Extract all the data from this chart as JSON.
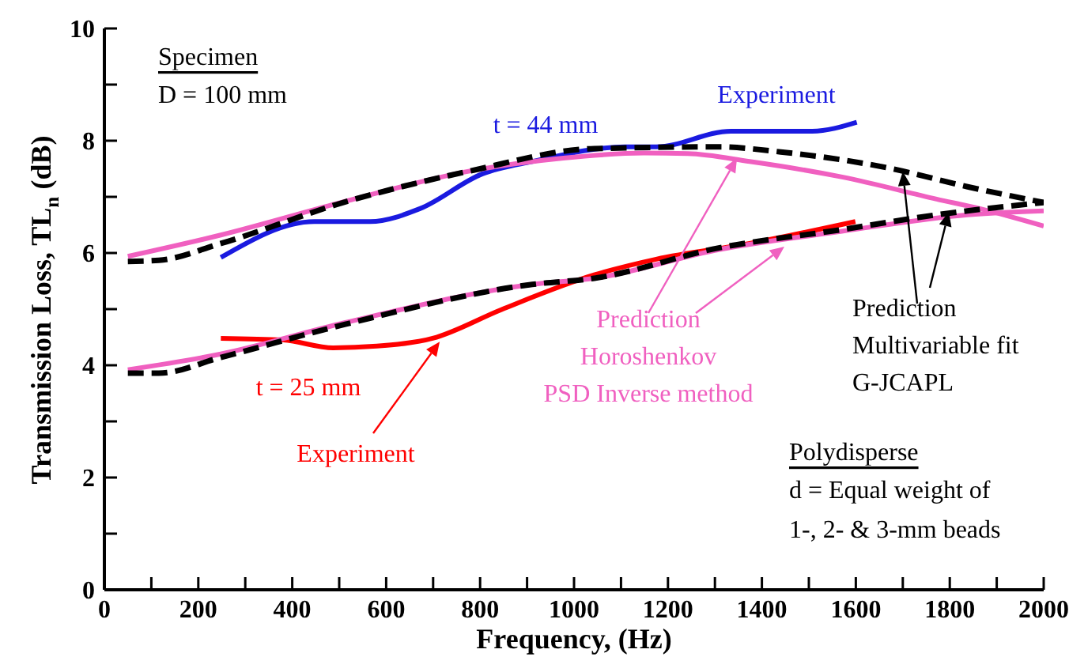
{
  "chart_data": {
    "type": "line",
    "xlabel": "Frequency, (Hz)",
    "ylabel": "Transmission Loss, TL$_{n}$ (dB)",
    "xlim": [
      0,
      2000
    ],
    "xticks": [
      0,
      {
        "value": 100,
        "label": null
      },
      200,
      {
        "value": 300,
        "label": null
      },
      400,
      {
        "value": 500,
        "label": null
      },
      600,
      {
        "value": 700,
        "label": null
      },
      800,
      {
        "value": 900,
        "label": null
      },
      1000,
      {
        "value": 1100,
        "label": null
      },
      1200,
      {
        "value": 1300,
        "label": null
      },
      1400,
      {
        "value": 1500,
        "label": null
      },
      1600,
      {
        "value": 1700,
        "label": null
      },
      1800,
      {
        "value": 1900,
        "label": null
      },
      2000
    ],
    "ylim": [
      0,
      10
    ],
    "yticks": [
      0,
      {
        "value": 1,
        "label": null
      },
      2,
      {
        "value": 3,
        "label": null
      },
      4,
      {
        "value": 5,
        "label": null
      },
      6,
      {
        "value": 7,
        "label": null
      },
      8,
      {
        "value": 9,
        "label": null
      },
      10
    ],
    "marker": "none",
    "series": [
      {
        "color": "#1a1ae0",
        "line_style": "solid",
        "x": [
          248,
          447,
          566,
          672,
          805,
          911,
          1109,
          1175,
          1334,
          1507,
          1602
        ],
        "values": [
          5.92,
          6.56,
          6.56,
          6.79,
          7.41,
          7.63,
          7.89,
          7.89,
          8.17,
          8.17,
          8.33
        ]
      },
      {
        "color": "#f060c0",
        "line_style": "solid",
        "x": [
          50,
          248,
          513,
          778,
          977,
          1149,
          1242,
          1374,
          1573,
          1772,
          1864,
          2000
        ],
        "values": [
          5.94,
          6.32,
          6.92,
          7.46,
          7.69,
          7.78,
          7.77,
          7.63,
          7.35,
          6.96,
          6.79,
          6.48
        ]
      },
      {
        "color": "#000000",
        "line_style": "dashed",
        "x": [
          50,
          116,
          248,
          513,
          778,
          1043,
          1308,
          1440,
          1666,
          1838,
          2000
        ],
        "values": [
          5.85,
          5.87,
          6.17,
          6.91,
          7.46,
          7.86,
          7.89,
          7.8,
          7.52,
          7.18,
          6.9
        ]
      },
      {
        "color": "#ff0000",
        "line_style": "solid",
        "x": [
          248,
          381,
          487,
          580,
          699,
          845,
          1043,
          1175,
          1374,
          1599
        ],
        "values": [
          4.48,
          4.45,
          4.31,
          4.34,
          4.48,
          4.99,
          5.61,
          5.89,
          6.17,
          6.56
        ]
      },
      {
        "color": "#f060c0",
        "line_style": "solid",
        "x": [
          50,
          248,
          513,
          911,
          1043,
          1308,
          1573,
          1838,
          2000
        ],
        "values": [
          3.92,
          4.2,
          4.76,
          5.44,
          5.55,
          6.06,
          6.39,
          6.68,
          6.75
        ]
      },
      {
        "color": "#000000",
        "line_style": "dashed",
        "x": [
          50,
          116,
          248,
          513,
          911,
          1043,
          1308,
          1573,
          1772,
          2000
        ],
        "values": [
          3.86,
          3.86,
          4.14,
          4.73,
          5.44,
          5.55,
          6.09,
          6.42,
          6.68,
          6.9
        ]
      }
    ],
    "annotations": [
      "Specimen",
      "D = 100 mm",
      "t = 44 mm",
      "Experiment",
      {
        "text": "Prediction\nHoroshenkov\nPSD Inverse method",
        "x": 1347,
        "y": 7.69
      },
      {
        "text": "Prediction\nMultivariable fit\nG-JCAPL",
        "x": 1700,
        "y": 7.45
      },
      "t = 25 mm",
      {
        "text": "Experiment",
        "x": 714,
        "y": 4.42
      },
      "Polydisperse",
      "d = Equal weight of",
      "1-, 2- & 3-mm beads"
    ]
  }
}
